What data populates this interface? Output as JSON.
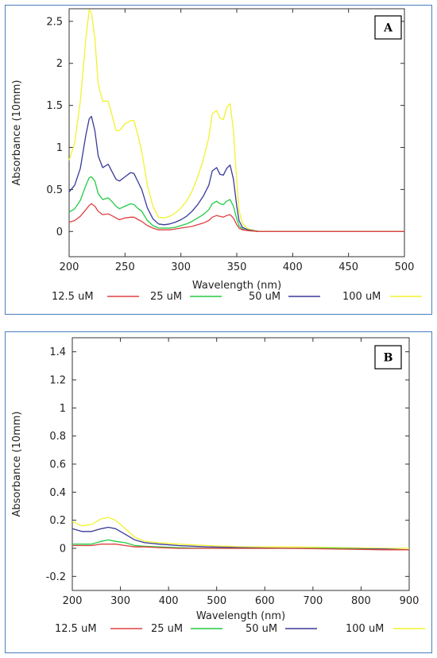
{
  "chart_data": [
    {
      "type": "line",
      "panel_label": "A",
      "xlabel": "Wavelength (nm)",
      "ylabel": "Absorbance (10mm)",
      "xlim": [
        200,
        500
      ],
      "ylim": [
        -0.3,
        2.65
      ],
      "xticks": [
        200,
        250,
        300,
        350,
        400,
        450,
        500
      ],
      "yticks": [
        0,
        0.5,
        1,
        1.5,
        2,
        2.5
      ],
      "ytick_labels": [
        "0",
        "0.5",
        "1",
        "1.5",
        "2",
        "2.5"
      ],
      "grid": false,
      "legend_position": "bottom",
      "series": [
        {
          "name": "12.5 uM",
          "color": "#e04040",
          "x": [
            200,
            205,
            210,
            215,
            218,
            220,
            223,
            226,
            230,
            235,
            238,
            242,
            245,
            250,
            255,
            258,
            262,
            265,
            270,
            275,
            280,
            285,
            290,
            295,
            300,
            305,
            310,
            315,
            320,
            325,
            328,
            332,
            335,
            338,
            341,
            344,
            347,
            350,
            352,
            355,
            360,
            370,
            400,
            450,
            500
          ],
          "y": [
            0.11,
            0.13,
            0.18,
            0.26,
            0.31,
            0.33,
            0.3,
            0.24,
            0.2,
            0.21,
            0.19,
            0.16,
            0.14,
            0.16,
            0.17,
            0.17,
            0.14,
            0.12,
            0.07,
            0.04,
            0.02,
            0.02,
            0.02,
            0.03,
            0.04,
            0.05,
            0.06,
            0.08,
            0.1,
            0.13,
            0.17,
            0.19,
            0.18,
            0.17,
            0.19,
            0.2,
            0.16,
            0.08,
            0.04,
            0.02,
            0.01,
            0.0,
            0.0,
            0.0,
            0.0
          ]
        },
        {
          "name": "25 uM",
          "color": "#22cc44",
          "x": [
            200,
            205,
            210,
            215,
            218,
            220,
            223,
            226,
            230,
            235,
            238,
            242,
            245,
            250,
            255,
            258,
            262,
            265,
            270,
            275,
            280,
            285,
            290,
            295,
            300,
            305,
            310,
            315,
            320,
            325,
            328,
            332,
            335,
            338,
            341,
            344,
            347,
            350,
            352,
            355,
            360,
            370,
            400,
            450,
            500
          ],
          "y": [
            0.23,
            0.27,
            0.37,
            0.55,
            0.64,
            0.65,
            0.6,
            0.45,
            0.38,
            0.4,
            0.36,
            0.3,
            0.27,
            0.3,
            0.33,
            0.32,
            0.27,
            0.24,
            0.13,
            0.07,
            0.04,
            0.04,
            0.04,
            0.05,
            0.07,
            0.09,
            0.12,
            0.16,
            0.2,
            0.26,
            0.33,
            0.36,
            0.33,
            0.32,
            0.36,
            0.38,
            0.3,
            0.15,
            0.07,
            0.03,
            0.01,
            0.0,
            0.0,
            0.0,
            0.0
          ]
        },
        {
          "name": "50 uM",
          "color": "#3a3a9a",
          "x": [
            200,
            205,
            210,
            215,
            218,
            220,
            223,
            226,
            230,
            235,
            238,
            242,
            245,
            250,
            255,
            258,
            262,
            265,
            270,
            275,
            280,
            285,
            290,
            295,
            300,
            305,
            310,
            315,
            320,
            325,
            328,
            332,
            335,
            338,
            341,
            344,
            347,
            350,
            352,
            355,
            360,
            370,
            400,
            450,
            500
          ],
          "y": [
            0.47,
            0.55,
            0.75,
            1.15,
            1.34,
            1.37,
            1.2,
            0.9,
            0.76,
            0.8,
            0.72,
            0.62,
            0.6,
            0.65,
            0.7,
            0.69,
            0.58,
            0.5,
            0.28,
            0.15,
            0.09,
            0.08,
            0.09,
            0.11,
            0.14,
            0.18,
            0.24,
            0.32,
            0.42,
            0.55,
            0.72,
            0.76,
            0.68,
            0.67,
            0.75,
            0.79,
            0.62,
            0.3,
            0.13,
            0.05,
            0.02,
            0.0,
            0.0,
            0.0,
            0.0
          ]
        },
        {
          "name": "100 uM",
          "color": "#f2f230",
          "x": [
            200,
            205,
            210,
            215,
            218,
            220,
            223,
            226,
            230,
            235,
            238,
            242,
            245,
            250,
            255,
            258,
            262,
            265,
            270,
            275,
            280,
            285,
            290,
            295,
            300,
            305,
            310,
            315,
            320,
            325,
            328,
            332,
            335,
            338,
            341,
            344,
            347,
            350,
            352,
            355,
            360,
            370,
            400,
            450,
            500
          ],
          "y": [
            0.85,
            1.05,
            1.55,
            2.3,
            2.64,
            2.6,
            2.3,
            1.75,
            1.55,
            1.55,
            1.4,
            1.2,
            1.2,
            1.28,
            1.32,
            1.32,
            1.12,
            0.95,
            0.55,
            0.3,
            0.17,
            0.16,
            0.18,
            0.22,
            0.28,
            0.36,
            0.48,
            0.65,
            0.85,
            1.12,
            1.4,
            1.44,
            1.35,
            1.33,
            1.48,
            1.52,
            1.2,
            0.6,
            0.25,
            0.1,
            0.03,
            0.0,
            0.0,
            0.0,
            0.0
          ]
        }
      ]
    },
    {
      "type": "line",
      "panel_label": "B",
      "xlabel": "Wavelength (nm)",
      "ylabel": "Absorbance (10mm)",
      "xlim": [
        200,
        900
      ],
      "ylim": [
        -0.3,
        1.5
      ],
      "xticks": [
        200,
        300,
        400,
        500,
        600,
        700,
        800,
        900
      ],
      "yticks": [
        -0.2,
        0,
        0.2,
        0.4,
        0.6,
        0.8,
        1,
        1.2,
        1.4
      ],
      "ytick_labels": [
        "-0.2",
        "0",
        "0.2",
        "0.4",
        "0.6",
        "0.8",
        "1",
        "1.2",
        "1.4"
      ],
      "grid": false,
      "legend_position": "bottom",
      "series": [
        {
          "name": "12.5 uM",
          "color": "#e04040",
          "x": [
            200,
            220,
            240,
            260,
            275,
            290,
            310,
            330,
            350,
            380,
            420,
            480,
            550,
            650,
            750,
            850,
            900
          ],
          "y": [
            0.02,
            0.02,
            0.02,
            0.03,
            0.03,
            0.03,
            0.02,
            0.01,
            0.01,
            0.005,
            0.0,
            0.0,
            0.0,
            0.0,
            -0.005,
            -0.01,
            -0.01
          ]
        },
        {
          "name": "25 uM",
          "color": "#22cc44",
          "x": [
            200,
            220,
            240,
            260,
            275,
            290,
            310,
            330,
            350,
            380,
            420,
            480,
            550,
            650,
            750,
            850,
            900
          ],
          "y": [
            0.03,
            0.03,
            0.03,
            0.05,
            0.06,
            0.05,
            0.04,
            0.02,
            0.015,
            0.01,
            0.005,
            0.0,
            0.0,
            0.0,
            0.0,
            -0.01,
            -0.01
          ]
        },
        {
          "name": "50 uM",
          "color": "#3a3a9a",
          "x": [
            200,
            220,
            240,
            260,
            275,
            290,
            310,
            330,
            350,
            380,
            420,
            480,
            550,
            650,
            750,
            850,
            900
          ],
          "y": [
            0.14,
            0.12,
            0.12,
            0.14,
            0.15,
            0.14,
            0.1,
            0.06,
            0.04,
            0.03,
            0.02,
            0.01,
            0.005,
            0.0,
            0.0,
            -0.005,
            -0.01
          ]
        },
        {
          "name": "100 uM",
          "color": "#f2f230",
          "x": [
            200,
            220,
            240,
            260,
            275,
            290,
            310,
            330,
            350,
            380,
            420,
            480,
            550,
            650,
            750,
            850,
            900
          ],
          "y": [
            0.19,
            0.16,
            0.17,
            0.21,
            0.22,
            0.2,
            0.14,
            0.08,
            0.05,
            0.04,
            0.03,
            0.02,
            0.01,
            0.01,
            0.005,
            0.0,
            0.0
          ]
        }
      ]
    }
  ]
}
